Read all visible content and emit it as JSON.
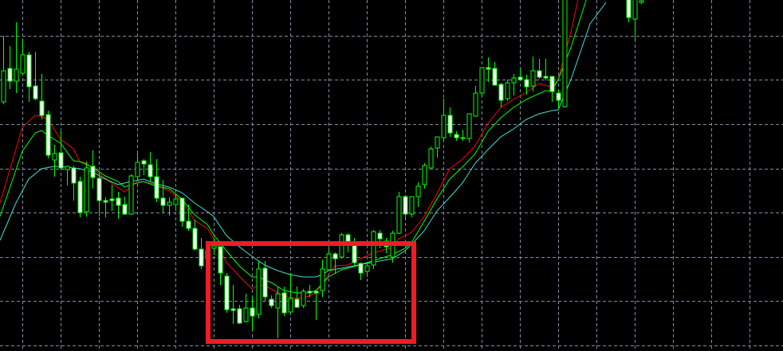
{
  "chart_data": {
    "type": "candlestick",
    "title": "",
    "xlabel": "",
    "ylabel": "",
    "x_unit": "bar index",
    "xlim": [
      -0.5,
      122
    ],
    "ylim": [
      -0.7,
      43.4
    ],
    "grid": true,
    "grid_style": "dashed",
    "legend": "none",
    "colors": {
      "background": "#000000",
      "grid": "#7d8ca3",
      "candle_outline": "#00ff00",
      "bear_fill": "#ffffff",
      "bull_fill": "#000000",
      "ma_fast": "#ff0000",
      "ma_medium": "#00ff00",
      "ma_slow": "#40e0d0",
      "highlight_box": "#ee1c25"
    },
    "candles_ohlc": [
      [
        30.6,
        38.9,
        30.3,
        34.5
      ],
      [
        34.8,
        37.6,
        32.2,
        33.2
      ],
      [
        33.2,
        40.6,
        31.7,
        34.7
      ],
      [
        34.2,
        38.5,
        33.9,
        36.5
      ],
      [
        36.5,
        36.9,
        30.6,
        32.5
      ],
      [
        32.6,
        36.9,
        30.8,
        31.0
      ],
      [
        30.7,
        34.1,
        28.4,
        28.9
      ],
      [
        29.0,
        29.5,
        23.5,
        23.9
      ],
      [
        23.3,
        25.2,
        21.2,
        24.1
      ],
      [
        24.2,
        26.9,
        22.1,
        22.3
      ],
      [
        22.1,
        22.6,
        20.1,
        22.5
      ],
      [
        22.3,
        22.6,
        18.2,
        20.4
      ],
      [
        20.6,
        21.2,
        16.1,
        16.7
      ],
      [
        16.8,
        23.1,
        16.2,
        22.3
      ],
      [
        22.5,
        24.5,
        19.7,
        21.1
      ],
      [
        21.0,
        21.7,
        16.2,
        18.2
      ],
      [
        18.2,
        18.6,
        16.1,
        18.0
      ],
      [
        18.4,
        20.2,
        16.9,
        18.2
      ],
      [
        18.5,
        19.3,
        15.9,
        17.6
      ],
      [
        17.7,
        18.7,
        16.4,
        16.5
      ],
      [
        16.5,
        21.5,
        16.4,
        21.3
      ],
      [
        21.2,
        24.2,
        20.9,
        23.0
      ],
      [
        23.2,
        23.4,
        21.4,
        22.8
      ],
      [
        22.7,
        24.3,
        20.6,
        21.2
      ],
      [
        21.2,
        23.4,
        18.0,
        18.5
      ],
      [
        18.5,
        20.8,
        16.7,
        17.6
      ],
      [
        17.6,
        18.6,
        16.3,
        18.0
      ],
      [
        17.7,
        19.1,
        16.9,
        18.4
      ],
      [
        18.5,
        18.5,
        14.9,
        15.6
      ],
      [
        15.6,
        17.7,
        14.4,
        14.7
      ],
      [
        14.7,
        15.8,
        11.9,
        12.1
      ],
      [
        12.1,
        13.5,
        9.6,
        10.0
      ],
      [
        10.9,
        12.9,
        10.4,
        11.9
      ],
      [
        12.2,
        13.5,
        11.4,
        12.5
      ],
      [
        12.4,
        12.4,
        7.6,
        9.1
      ],
      [
        8.7,
        9.1,
        4.1,
        4.5
      ],
      [
        4.6,
        7.6,
        2.7,
        4.4
      ],
      [
        4.6,
        5.1,
        2.7,
        2.8
      ],
      [
        3.0,
        6.5,
        2.9,
        4.7
      ],
      [
        4.7,
        6.1,
        1.9,
        3.7
      ],
      [
        3.9,
        10.6,
        3.4,
        9.6
      ],
      [
        9.7,
        10.6,
        5.6,
        6.1
      ],
      [
        5.8,
        6.3,
        4.7,
        5.0
      ],
      [
        4.7,
        7.4,
        0.9,
        6.5
      ],
      [
        6.6,
        7.4,
        3.7,
        4.1
      ],
      [
        4.2,
        9.1,
        4.1,
        5.9
      ],
      [
        5.8,
        7.4,
        4.7,
        4.8
      ],
      [
        5.0,
        7.1,
        4.7,
        6.8
      ],
      [
        6.8,
        7.6,
        6.1,
        6.6
      ],
      [
        6.8,
        6.9,
        3.2,
        6.6
      ],
      [
        6.9,
        10.8,
        6.1,
        9.6
      ],
      [
        9.5,
        12.2,
        9.4,
        11.5
      ],
      [
        11.5,
        11.7,
        9.0,
        10.9
      ],
      [
        11.1,
        14.1,
        10.9,
        13.9
      ],
      [
        13.9,
        14.1,
        11.7,
        12.8
      ],
      [
        12.6,
        13.5,
        10.1,
        10.4
      ],
      [
        10.3,
        10.4,
        8.2,
        9.1
      ],
      [
        9.3,
        10.4,
        8.6,
        10.0
      ],
      [
        10.1,
        14.5,
        9.6,
        14.3
      ],
      [
        14.1,
        14.5,
        12.2,
        13.4
      ],
      [
        13.1,
        13.5,
        11.6,
        12.4
      ],
      [
        11.1,
        14.4,
        10.4,
        14.1
      ],
      [
        14.1,
        19.3,
        14.0,
        18.7
      ],
      [
        18.7,
        18.8,
        16.1,
        16.5
      ],
      [
        16.5,
        18.7,
        16.1,
        18.7
      ],
      [
        18.7,
        20.5,
        17.4,
        20.0
      ],
      [
        20.2,
        22.9,
        19.7,
        22.6
      ],
      [
        22.3,
        25.0,
        22.3,
        24.7
      ],
      [
        24.8,
        26.2,
        23.6,
        26.2
      ],
      [
        26.1,
        31.0,
        25.9,
        28.9
      ],
      [
        28.9,
        29.9,
        26.2,
        26.7
      ],
      [
        26.5,
        26.9,
        25.7,
        26.1
      ],
      [
        26.1,
        27.1,
        25.7,
        26.1
      ],
      [
        26.0,
        29.1,
        25.5,
        29.1
      ],
      [
        28.8,
        32.6,
        28.8,
        31.7
      ],
      [
        31.7,
        34.9,
        31.2,
        34.9
      ],
      [
        34.9,
        36.2,
        33.1,
        34.7
      ],
      [
        34.8,
        35.6,
        32.7,
        32.7
      ],
      [
        32.8,
        33.0,
        29.9,
        30.8
      ],
      [
        31.0,
        33.4,
        30.7,
        33.0
      ],
      [
        33.0,
        34.1,
        31.4,
        33.6
      ],
      [
        33.7,
        34.8,
        33.2,
        33.4
      ],
      [
        33.4,
        34.0,
        31.5,
        32.5
      ],
      [
        32.6,
        36.3,
        31.9,
        34.5
      ],
      [
        34.5,
        36.0,
        33.5,
        33.7
      ],
      [
        33.8,
        36.0,
        33.3,
        33.6
      ],
      [
        33.8,
        33.8,
        30.6,
        31.9
      ],
      [
        31.7,
        32.1,
        29.7,
        30.8
      ],
      [
        30.0,
        45.0,
        29.9,
        44.4
      ],
      null,
      null,
      null,
      null,
      null,
      null,
      null,
      null,
      null,
      [
        43.9,
        44.5,
        40.6,
        41.2
      ],
      [
        41.0,
        44.5,
        38.4,
        43.9
      ],
      [
        43.1,
        44.0,
        42.9,
        43.3
      ]
    ],
    "moving_averages": [
      {
        "role": "fast",
        "color": "#ff0000",
        "points": [
          [
            -0.5,
            17.9
          ],
          [
            3,
            27.4
          ],
          [
            5,
            28.9
          ],
          [
            6,
            28.8
          ],
          [
            7,
            28.4
          ],
          [
            9,
            25.9
          ],
          [
            11,
            24.7
          ],
          [
            12,
            23.1
          ],
          [
            13,
            22.9
          ],
          [
            15,
            21.6
          ],
          [
            17,
            20.4
          ],
          [
            19,
            19.3
          ],
          [
            20,
            19.9
          ],
          [
            21,
            20.6
          ],
          [
            22,
            20.6
          ],
          [
            24,
            20.2
          ],
          [
            26,
            19.4
          ],
          [
            28,
            18.2
          ],
          [
            30,
            15.7
          ],
          [
            32,
            14.7
          ],
          [
            33,
            13.4
          ],
          [
            35,
            10.4
          ],
          [
            37,
            8.7
          ],
          [
            39,
            7.1
          ],
          [
            40,
            7.6
          ],
          [
            41,
            7.5
          ],
          [
            42,
            7.1
          ],
          [
            44,
            6.2
          ],
          [
            46,
            5.9
          ],
          [
            48,
            6.2
          ],
          [
            49,
            6.6
          ],
          [
            50,
            7.7
          ],
          [
            51,
            8.9
          ],
          [
            52,
            10.0
          ],
          [
            54,
            10.1
          ],
          [
            56,
            10.9
          ],
          [
            58,
            11.6
          ],
          [
            60,
            12.1
          ],
          [
            61,
            12.2
          ],
          [
            62,
            13.4
          ],
          [
            64,
            14.2
          ],
          [
            66,
            16.2
          ],
          [
            68,
            19.1
          ],
          [
            70,
            22.2
          ],
          [
            72,
            23.4
          ],
          [
            74,
            25.1
          ],
          [
            76,
            27.9
          ],
          [
            78,
            29.9
          ],
          [
            80,
            30.9
          ],
          [
            82,
            31.8
          ],
          [
            84,
            32.9
          ],
          [
            85,
            32.7
          ],
          [
            86,
            32.4
          ],
          [
            87,
            33.4
          ],
          [
            88,
            36.4
          ],
          [
            89,
            39.4
          ],
          [
            90.1,
            43.4
          ]
        ]
      },
      {
        "role": "medium",
        "color": "#00ff00",
        "points": [
          [
            -0.5,
            16.2
          ],
          [
            3,
            24.4
          ],
          [
            5,
            26.7
          ],
          [
            6,
            27.0
          ],
          [
            7,
            26.4
          ],
          [
            9,
            25.4
          ],
          [
            11,
            23.2
          ],
          [
            12,
            23.1
          ],
          [
            14,
            22.4
          ],
          [
            16,
            21.3
          ],
          [
            18,
            20.6
          ],
          [
            19,
            19.9
          ],
          [
            20,
            20.2
          ],
          [
            22,
            20.6
          ],
          [
            24,
            20.0
          ],
          [
            26,
            19.7
          ],
          [
            28,
            18.4
          ],
          [
            30,
            16.4
          ],
          [
            32,
            15.2
          ],
          [
            33,
            13.9
          ],
          [
            35,
            11.9
          ],
          [
            37,
            10.0
          ],
          [
            39,
            8.6
          ],
          [
            40,
            8.6
          ],
          [
            42,
            7.9
          ],
          [
            44,
            6.9
          ],
          [
            46,
            6.6
          ],
          [
            48,
            6.6
          ],
          [
            49,
            6.9
          ],
          [
            50,
            7.7
          ],
          [
            51,
            8.6
          ],
          [
            53,
            9.5
          ],
          [
            55,
            9.9
          ],
          [
            57,
            10.4
          ],
          [
            59,
            10.9
          ],
          [
            61,
            11.4
          ],
          [
            63,
            12.2
          ],
          [
            64,
            12.9
          ],
          [
            66,
            15.6
          ],
          [
            68,
            18.4
          ],
          [
            70,
            20.9
          ],
          [
            72,
            22.4
          ],
          [
            74,
            24.1
          ],
          [
            76,
            26.9
          ],
          [
            78,
            28.6
          ],
          [
            80,
            29.9
          ],
          [
            82,
            30.9
          ],
          [
            85,
            32.0
          ],
          [
            86,
            32.0
          ],
          [
            87,
            33.4
          ],
          [
            89,
            37.4
          ],
          [
            91.4,
            43.4
          ]
        ]
      },
      {
        "role": "slow",
        "color": "#40e0d0",
        "points": [
          [
            -0.5,
            13.2
          ],
          [
            2,
            17.9
          ],
          [
            4,
            20.9
          ],
          [
            6,
            22.2
          ],
          [
            8,
            22.5
          ],
          [
            10,
            22.4
          ],
          [
            12,
            22.2
          ],
          [
            14,
            21.8
          ],
          [
            16,
            20.9
          ],
          [
            18,
            20.2
          ],
          [
            20,
            20.6
          ],
          [
            22,
            20.9
          ],
          [
            24,
            20.3
          ],
          [
            26,
            19.9
          ],
          [
            28,
            19.2
          ],
          [
            30,
            17.9
          ],
          [
            32,
            16.8
          ],
          [
            33,
            16.2
          ],
          [
            35,
            13.8
          ],
          [
            37,
            12.4
          ],
          [
            39,
            11.2
          ],
          [
            41,
            10.1
          ],
          [
            43,
            9.4
          ],
          [
            45,
            8.9
          ],
          [
            47,
            8.6
          ],
          [
            49,
            8.6
          ],
          [
            50,
            8.9
          ],
          [
            51,
            9.4
          ],
          [
            53,
            9.7
          ],
          [
            55,
            10.0
          ],
          [
            57,
            10.3
          ],
          [
            59,
            10.6
          ],
          [
            61,
            10.9
          ],
          [
            63,
            11.9
          ],
          [
            64.5,
            13.1
          ],
          [
            66,
            14.4
          ],
          [
            68,
            16.9
          ],
          [
            70,
            18.6
          ],
          [
            72,
            20.4
          ],
          [
            74,
            22.9
          ],
          [
            76,
            24.6
          ],
          [
            78,
            26.2
          ],
          [
            80,
            27.2
          ],
          [
            82,
            28.4
          ],
          [
            84,
            29.1
          ],
          [
            86,
            29.5
          ],
          [
            87,
            29.6
          ],
          [
            89,
            33.4
          ],
          [
            92,
            40.4
          ],
          [
            94.5,
            43.1
          ]
        ]
      }
    ],
    "annotations": [
      {
        "type": "rectangle",
        "color": "#ee1c25",
        "x_range": [
          31.75,
          64.75
        ],
        "y_range": [
          0.2,
          13.1
        ]
      }
    ]
  }
}
